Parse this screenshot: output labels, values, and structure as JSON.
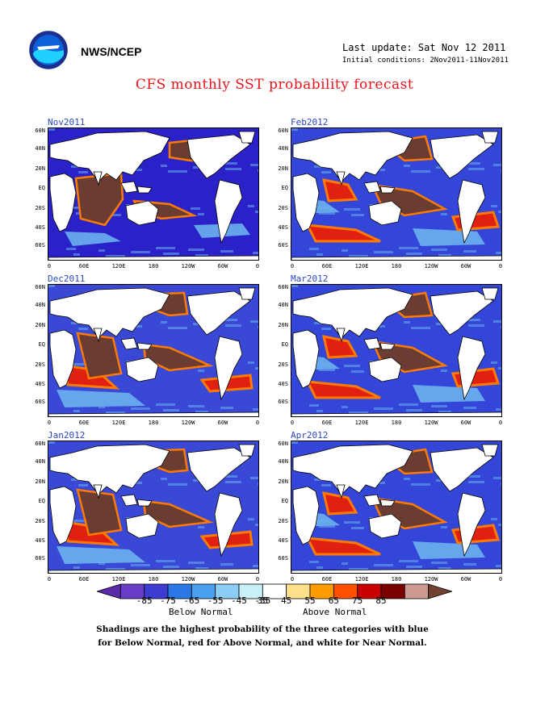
{
  "header": {
    "org": "NWS/NCEP",
    "last_update": "Last update: Sat Nov 12 2011",
    "initial_conditions": "Initial conditions: 2Nov2011-11Nov2011",
    "title": "CFS monthly SST probability forecast"
  },
  "panels": [
    {
      "title": "Nov2011",
      "pattern": "cold"
    },
    {
      "title": "Feb2012",
      "pattern": "mixed-cold"
    },
    {
      "title": "Dec2011",
      "pattern": "mixed"
    },
    {
      "title": "Mar2012",
      "pattern": "mixed-cold"
    },
    {
      "title": "Jan2012",
      "pattern": "mixed"
    },
    {
      "title": "Apr2012",
      "pattern": "mixed-cold"
    }
  ],
  "axes": {
    "lat_ticks": [
      "60N",
      "40N",
      "20N",
      "EQ",
      "20S",
      "40S",
      "60S"
    ],
    "lon_ticks": [
      "0",
      "60E",
      "120E",
      "180",
      "120W",
      "60W",
      "0"
    ]
  },
  "legend": {
    "labels": [
      "-85",
      "-75",
      "-65",
      "-55",
      "-45",
      "-35",
      "35",
      "45",
      "55",
      "65",
      "75",
      "85"
    ],
    "colors": [
      "#6a3dc8",
      "#3c3cd2",
      "#2a78e6",
      "#4aa0f0",
      "#8ccdf5",
      "#c8f0f8",
      "#ffffff",
      "#ffe08a",
      "#ff9c00",
      "#ff5000",
      "#c80000",
      "#7a0000",
      "#cc9a90"
    ],
    "arrow_low_color": "#5a2aa8",
    "arrow_high_color": "#704030",
    "below_label": "Below Normal",
    "above_label": "Above Normal"
  },
  "notes": {
    "line1": "Shadings are the highest probability of the three categories with blue",
    "line2": "for Below Normal, red for Above Normal, and white for Near Normal."
  },
  "palette": {
    "cold": "#2a22c8",
    "deep_cold": "#3d2ba8",
    "light_blue": "#6ab0f0",
    "warm": "#6b3c32",
    "warm_edge": "#ff7a00",
    "red": "#e02010"
  }
}
